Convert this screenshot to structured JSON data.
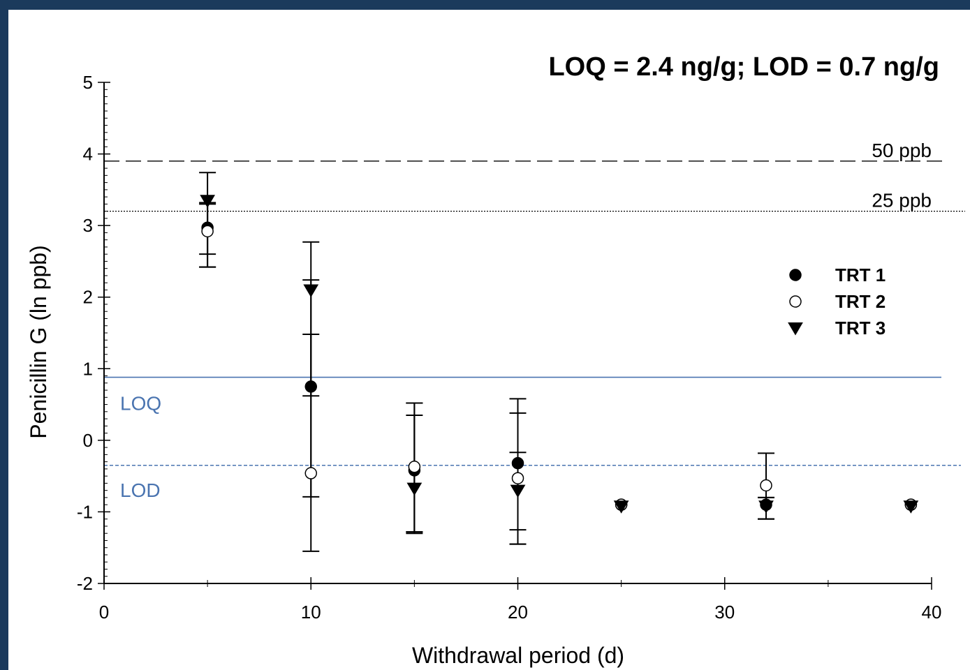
{
  "chart_data": {
    "type": "scatter",
    "title": "LOQ = 2.4 ng/g; LOD = 0.7 ng/g",
    "xlabel": "Withdrawal period (d)",
    "ylabel": "Penicillin G (ln ppb)",
    "xlim": [
      0,
      40
    ],
    "ylim": [
      -2,
      5
    ],
    "xticks": [
      0,
      10,
      20,
      30,
      40
    ],
    "yticks": [
      -2,
      -1,
      0,
      1,
      2,
      3,
      4,
      5
    ],
    "xtick_labels": [
      "0",
      "10",
      "20",
      "30",
      "40"
    ],
    "ytick_labels": [
      "-2",
      "-1",
      "0",
      "1",
      "2",
      "3",
      "4",
      "5"
    ],
    "grid": false,
    "legend_position": "right",
    "reference_lines": [
      {
        "label": "50 ppb",
        "y": 3.9,
        "style": "dashed",
        "color": "#000000"
      },
      {
        "label": "25 ppb",
        "y": 3.2,
        "style": "dotted",
        "color": "#000000"
      },
      {
        "label": "LOQ",
        "y": 0.88,
        "style": "solid",
        "color": "#4a74b0"
      },
      {
        "label": "LOD",
        "y": -0.35,
        "style": "dashed",
        "color": "#4a74b0"
      }
    ],
    "series": [
      {
        "name": "TRT 1",
        "marker": "filled-circle",
        "points": [
          {
            "x": 5,
            "y": 2.97,
            "err_low": 2.42,
            "err_high": 3.32
          },
          {
            "x": 10,
            "y": 0.75,
            "err_low": -1.55,
            "err_high": 2.24
          },
          {
            "x": 15,
            "y": -0.42,
            "err_low": -1.3,
            "err_high": 0.52
          },
          {
            "x": 20,
            "y": -0.32,
            "err_low": -1.25,
            "err_high": 0.58
          },
          {
            "x": 25,
            "y": -0.9
          },
          {
            "x": 32,
            "y": -0.9,
            "err_low": -1.1,
            "err_high": -0.8
          },
          {
            "x": 39,
            "y": -0.9
          }
        ]
      },
      {
        "name": "TRT 2",
        "marker": "open-circle",
        "points": [
          {
            "x": 5,
            "y": 2.92,
            "err_low": 2.42,
            "err_high": 3.3
          },
          {
            "x": 10,
            "y": -0.46,
            "err_low": -0.79,
            "err_high": 1.48
          },
          {
            "x": 15,
            "y": -0.37,
            "err_low": -1.28,
            "err_high": 0.52
          },
          {
            "x": 20,
            "y": -0.53,
            "err_low": -1.45,
            "err_high": 0.38
          },
          {
            "x": 25,
            "y": -0.9
          },
          {
            "x": 32,
            "y": -0.63,
            "err_low": -1.1,
            "err_high": -0.18
          },
          {
            "x": 39,
            "y": -0.9
          }
        ]
      },
      {
        "name": "TRT 3",
        "marker": "filled-triangle-down",
        "points": [
          {
            "x": 5,
            "y": 3.35,
            "err_low": 2.6,
            "err_high": 3.74
          },
          {
            "x": 10,
            "y": 2.1,
            "err_low": 0.62,
            "err_high": 2.77
          },
          {
            "x": 15,
            "y": -0.67,
            "err_low": -1.28,
            "err_high": 0.35
          },
          {
            "x": 20,
            "y": -0.7,
            "err_low": -1.45,
            "err_high": -0.17
          },
          {
            "x": 25,
            "y": -0.92
          },
          {
            "x": 32,
            "y": -0.92,
            "err_low": -1.1,
            "err_high": -0.8
          },
          {
            "x": 39,
            "y": -0.92
          }
        ]
      }
    ]
  }
}
